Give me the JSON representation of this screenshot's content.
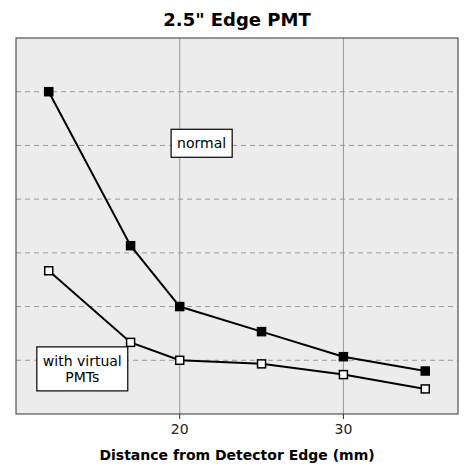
{
  "chart_data": {
    "type": "line",
    "title": "2.5\" Edge PMT",
    "x_label": "Distance from Detector Edge (mm)",
    "x": [
      12,
      17,
      20,
      25,
      30,
      35
    ],
    "series": [
      {
        "color": "#000000",
        "marker": "square",
        "values": [
          13.5,
          9.2,
          7.5,
          6.8,
          6.1,
          5.7
        ]
      },
      {
        "color": "#000000",
        "marker": "square-open",
        "values": [
          8.5,
          6.5,
          6.0,
          5.9,
          5.6,
          5.2
        ]
      }
    ],
    "annotations": [
      "normal",
      "with virtual\nPMTs"
    ],
    "xlim": [
      10,
      37
    ],
    "ylim": [
      4.5,
      15
    ],
    "xticks": [
      20,
      30
    ],
    "yticks": [
      6.0,
      7.5,
      9.0,
      10.5,
      12.0,
      13.5
    ],
    "grid": true,
    "tick_labels": "x"
  }
}
